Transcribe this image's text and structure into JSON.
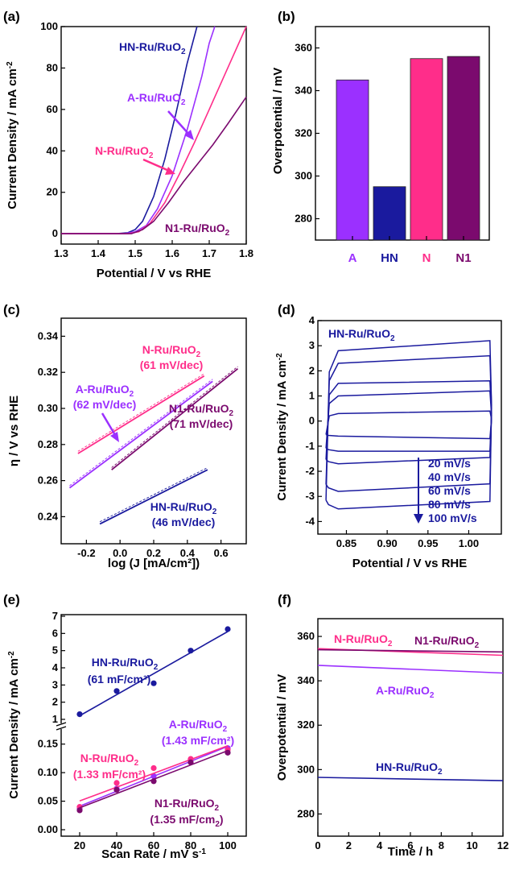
{
  "colors": {
    "A": "#9b30ff",
    "HN": "#1a1a9e",
    "N": "#ff2d8a",
    "N1": "#7b0a6e"
  },
  "panels": {
    "a": {
      "label": "(a)",
      "xlabel": "Potential / V vs RHE",
      "ylabel": "Current Density / mA cm",
      "ylabel_sup": "-2",
      "xticks": [
        "1.3",
        "1.4",
        "1.5",
        "1.6",
        "1.7",
        "1.8"
      ],
      "yticks": [
        "0",
        "20",
        "40",
        "60",
        "80",
        "100"
      ],
      "series_labels": {
        "HN": {
          "main": "HN-Ru/RuO",
          "sub": "2"
        },
        "A": {
          "main": "A-Ru/RuO",
          "sub": "2"
        },
        "N": {
          "main": "N-Ru/RuO",
          "sub": "2"
        },
        "N1": {
          "main": "N1-Ru/RuO",
          "sub": "2"
        }
      }
    },
    "b": {
      "label": "(b)",
      "ylabel": "Overpotential / mV",
      "yticks": [
        "280",
        "300",
        "320",
        "340",
        "360"
      ],
      "categories": [
        "A",
        "HN",
        "N",
        "N1"
      ]
    },
    "c": {
      "label": "(c)",
      "xlabel": "log (J [mA/cm²])",
      "ylabel": "η / V vs RHE",
      "xticks": [
        "-0.2",
        "0.0",
        "0.2",
        "0.4",
        "0.6"
      ],
      "yticks": [
        "0.24",
        "0.26",
        "0.28",
        "0.30",
        "0.32",
        "0.34"
      ],
      "annotations": {
        "N": {
          "name": "N-Ru/RuO",
          "sub": "2",
          "slope": "(61 mV/dec)"
        },
        "A": {
          "name": "A-Ru/RuO",
          "sub": "2",
          "slope": "(62 mV/dec)"
        },
        "N1": {
          "name": "N1-Ru/RuO",
          "sub": "2",
          "slope": "(71 mV/dec)"
        },
        "HN": {
          "name": "HN-Ru/RuO",
          "sub": "2",
          "slope": "(46 mV/dec)"
        }
      }
    },
    "d": {
      "label": "(d)",
      "xlabel": "Potential / V vs RHE",
      "ylabel": "Current Density / mA cm",
      "ylabel_sup": "-2",
      "xticks": [
        "0.85",
        "0.90",
        "0.95",
        "1.00"
      ],
      "yticks": [
        "-4",
        "-3",
        "-2",
        "-1",
        "0",
        "1",
        "2",
        "3",
        "4"
      ],
      "series_label": {
        "main": "HN-Ru/RuO",
        "sub": "2"
      },
      "rates": [
        "20 mV/s",
        "40 mV/s",
        "60 mV/s",
        "80 mV/s",
        "100 mV/s"
      ]
    },
    "e": {
      "label": "(e)",
      "xlabel": "Scan Rate / mV s",
      "xlabel_sup": "-1",
      "ylabel": "Current Density / mA cm",
      "ylabel_sup": "-2",
      "xticks": [
        "20",
        "40",
        "60",
        "80",
        "100"
      ],
      "yticks_upper": [
        "1",
        "2",
        "3",
        "4",
        "5",
        "6",
        "7"
      ],
      "yticks_lower": [
        "0.00",
        "0.05",
        "0.10",
        "0.15"
      ],
      "annotations": {
        "HN": {
          "name": "HN-Ru/RuO",
          "sub": "2",
          "cap": "(61 mF/cm²)"
        },
        "A": {
          "name": "A-Ru/RuO",
          "sub": "2",
          "cap": "(1.43 mF/cm²)"
        },
        "N": {
          "name": "N-Ru/RuO",
          "sub": "2",
          "cap": "(1.33 mF/cm²)"
        },
        "N1": {
          "name": "N1-Ru/RuO",
          "sub": "2",
          "cap": "(1.35 mF/cm",
          "cap_sub": "2",
          "cap_end": ")"
        }
      }
    },
    "f": {
      "label": "(f)",
      "xlabel": "Time / h",
      "ylabel": "Overpotential / mV",
      "xticks": [
        "0",
        "2",
        "4",
        "6",
        "8",
        "10",
        "12"
      ],
      "yticks": [
        "280",
        "300",
        "320",
        "340",
        "360"
      ],
      "annotations": {
        "N": {
          "name": "N-Ru/RuO",
          "sub": "2"
        },
        "N1": {
          "name": "N1-Ru/RuO",
          "sub": "2"
        },
        "A": {
          "name": "A-Ru/RuO",
          "sub": "2"
        },
        "HN": {
          "name": "HN-Ru/RuO",
          "sub": "2"
        }
      }
    }
  },
  "chart_data": [
    {
      "type": "line",
      "panel": "a",
      "xlabel": "Potential / V vs RHE",
      "ylabel": "Current Density / mA cm-2",
      "xlim": [
        1.3,
        1.8
      ],
      "ylim": [
        -5,
        100
      ],
      "series": [
        {
          "name": "HN-Ru/RuO2",
          "color": "#1a1a9e",
          "x": [
            1.3,
            1.45,
            1.48,
            1.5,
            1.52,
            1.55,
            1.58,
            1.61,
            1.64,
            1.667
          ],
          "y": [
            0,
            0,
            0.5,
            2,
            6,
            18,
            36,
            58,
            82,
            100
          ]
        },
        {
          "name": "A-Ru/RuO2",
          "color": "#9b30ff",
          "x": [
            1.3,
            1.47,
            1.5,
            1.53,
            1.56,
            1.6,
            1.64,
            1.68,
            1.7,
            1.715
          ],
          "y": [
            0,
            0,
            1,
            4,
            12,
            28,
            50,
            76,
            92,
            100
          ]
        },
        {
          "name": "N-Ru/RuO2",
          "color": "#ff2d8a",
          "x": [
            1.3,
            1.48,
            1.51,
            1.54,
            1.58,
            1.62,
            1.66,
            1.7,
            1.74,
            1.8
          ],
          "y": [
            0,
            0,
            1,
            5,
            15,
            29,
            44,
            60,
            76,
            100
          ]
        },
        {
          "name": "N1-Ru/RuO2",
          "color": "#7b0a6e",
          "x": [
            1.3,
            1.49,
            1.52,
            1.55,
            1.59,
            1.63,
            1.67,
            1.71,
            1.75,
            1.8
          ],
          "y": [
            0,
            0,
            2,
            6,
            15,
            25,
            34,
            43,
            53,
            66
          ]
        }
      ]
    },
    {
      "type": "bar",
      "panel": "b",
      "ylabel": "Overpotential / mV",
      "ylim": [
        270,
        370
      ],
      "categories": [
        "A",
        "HN",
        "N",
        "N1"
      ],
      "values": [
        345,
        295,
        355,
        356
      ],
      "colors": [
        "#9b30ff",
        "#1a1a9e",
        "#ff2d8a",
        "#7b0a6e"
      ]
    },
    {
      "type": "line",
      "panel": "c",
      "xlabel": "log (J [mA/cm²])",
      "ylabel": "η / V vs RHE",
      "xlim": [
        -0.35,
        0.75
      ],
      "ylim": [
        0.225,
        0.35
      ],
      "series": [
        {
          "name": "N-Ru/RuO2 (61 mV/dec)",
          "color": "#ff2d8a",
          "x": [
            -0.25,
            0.5
          ],
          "y": [
            0.275,
            0.318
          ]
        },
        {
          "name": "A-Ru/RuO2 (62 mV/dec)",
          "color": "#9b30ff",
          "x": [
            -0.3,
            0.55
          ],
          "y": [
            0.256,
            0.315
          ]
        },
        {
          "name": "N1-Ru/RuO2 (71 mV/dec)",
          "color": "#7b0a6e",
          "x": [
            -0.05,
            0.7
          ],
          "y": [
            0.266,
            0.322
          ]
        },
        {
          "name": "HN-Ru/RuO2 (46 mV/dec)",
          "color": "#1a1a9e",
          "x": [
            -0.12,
            0.52
          ],
          "y": [
            0.236,
            0.266
          ]
        }
      ]
    },
    {
      "type": "line",
      "panel": "d",
      "xlabel": "Potential / V vs RHE",
      "ylabel": "Current Density / mA cm-2",
      "xlim": [
        0.815,
        1.04
      ],
      "ylim": [
        -4.5,
        4
      ],
      "series": [
        {
          "name": "20 mV/s",
          "color": "#1a1a9e",
          "upper": [
            0.3,
            0.4
          ],
          "lower": [
            -0.6,
            -0.7
          ]
        },
        {
          "name": "40 mV/s",
          "color": "#1a1a9e",
          "upper": [
            1.0,
            1.2
          ],
          "lower": [
            -1.2,
            -1.2
          ]
        },
        {
          "name": "60 mV/s",
          "color": "#1a1a9e",
          "upper": [
            1.5,
            1.6
          ],
          "lower": [
            -1.7,
            -1.45
          ]
        },
        {
          "name": "80 mV/s",
          "color": "#1a1a9e",
          "upper": [
            2.3,
            2.6
          ],
          "lower": [
            -2.8,
            -2.5
          ]
        },
        {
          "name": "100 mV/s",
          "color": "#1a1a9e",
          "upper": [
            2.8,
            3.2
          ],
          "lower": [
            -3.5,
            -3.2
          ]
        }
      ]
    },
    {
      "type": "scatter",
      "panel": "e",
      "xlabel": "Scan Rate / mV s-1",
      "ylabel": "Current Density / mA cm-2",
      "series": [
        {
          "name": "HN-Ru/RuO2 (61 mF/cm²)",
          "color": "#1a1a9e",
          "x": [
            20,
            40,
            60,
            80,
            100
          ],
          "y": [
            1.3,
            2.65,
            3.1,
            5.0,
            6.25
          ]
        },
        {
          "name": "A-Ru/RuO2 (1.43 mF/cm²)",
          "color": "#9b30ff",
          "x": [
            20,
            40,
            60,
            80,
            100
          ],
          "y": [
            0.037,
            0.072,
            0.094,
            0.122,
            0.143
          ]
        },
        {
          "name": "N-Ru/RuO2 (1.33 mF/cm²)",
          "color": "#ff2d8a",
          "x": [
            20,
            40,
            60,
            80,
            100
          ],
          "y": [
            0.04,
            0.082,
            0.108,
            0.124,
            0.14
          ]
        },
        {
          "name": "N1-Ru/RuO2 (1.35 mF/cm2)",
          "color": "#7b0a6e",
          "x": [
            20,
            40,
            60,
            80,
            100
          ],
          "y": [
            0.034,
            0.07,
            0.085,
            0.118,
            0.135
          ]
        }
      ]
    },
    {
      "type": "line",
      "panel": "f",
      "xlabel": "Time / h",
      "ylabel": "Overpotential / mV",
      "xlim": [
        0,
        12
      ],
      "ylim": [
        270,
        368
      ],
      "series": [
        {
          "name": "N-Ru/RuO2",
          "color": "#ff2d8a",
          "x": [
            0,
            12
          ],
          "y": [
            354.5,
            351.5
          ]
        },
        {
          "name": "N1-Ru/RuO2",
          "color": "#7b0a6e",
          "x": [
            0,
            12
          ],
          "y": [
            354,
            353
          ]
        },
        {
          "name": "A-Ru/RuO2",
          "color": "#9b30ff",
          "x": [
            0,
            12
          ],
          "y": [
            347,
            343.5
          ]
        },
        {
          "name": "HN-Ru/RuO2",
          "color": "#1a1a9e",
          "x": [
            0,
            12
          ],
          "y": [
            296.5,
            295
          ]
        }
      ]
    }
  ]
}
